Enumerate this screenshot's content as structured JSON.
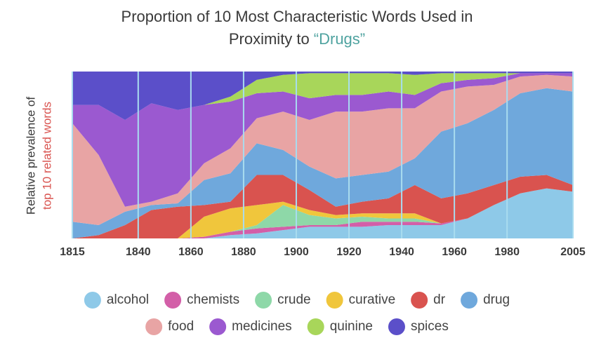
{
  "chart_data": {
    "type": "stacked_area",
    "title_line1": "Proportion of 10 Most Characteristic Words Used in",
    "title_line2": "Proximity to",
    "title_highlight": "“Drugs”",
    "ylabel_line1": "Relative prevalence of",
    "ylabel_line2": "top 10 related words",
    "x": [
      1815,
      1825,
      1835,
      1845,
      1855,
      1865,
      1875,
      1885,
      1895,
      1905,
      1915,
      1925,
      1935,
      1945,
      1955,
      1965,
      1975,
      1985,
      1995,
      2005
    ],
    "xlim": [
      1815,
      2005
    ],
    "xticks": [
      1815,
      1840,
      1860,
      1880,
      1900,
      1920,
      1940,
      1960,
      1980,
      2005
    ],
    "ylim": [
      0,
      100
    ],
    "grid": true,
    "series": [
      {
        "name": "alcohol",
        "color": "#8ec9e8",
        "values": [
          0,
          0,
          0,
          0,
          0,
          0,
          2,
          3,
          5,
          7,
          7,
          7,
          8,
          8,
          8,
          12,
          20,
          27,
          30,
          28
        ]
      },
      {
        "name": "chemists",
        "color": "#d35fa8",
        "values": [
          0,
          0,
          0,
          0,
          0,
          1,
          2,
          3,
          2,
          1,
          1,
          3,
          2,
          2,
          1,
          0,
          0,
          0,
          0,
          0
        ]
      },
      {
        "name": "crude",
        "color": "#8ed8a8",
        "values": [
          0,
          0,
          0,
          0,
          0,
          0,
          0,
          2,
          13,
          6,
          4,
          3,
          2,
          2,
          0,
          0,
          0,
          0,
          0,
          0
        ]
      },
      {
        "name": "curative",
        "color": "#f0c63c",
        "values": [
          0,
          0,
          0,
          0,
          0,
          12,
          14,
          12,
          2,
          3,
          2,
          2,
          3,
          3,
          0,
          0,
          0,
          0,
          0,
          0
        ]
      },
      {
        "name": "dr",
        "color": "#d9534f",
        "values": [
          0,
          2,
          8,
          17,
          19,
          7,
          4,
          18,
          16,
          12,
          5,
          7,
          9,
          17,
          15,
          15,
          12,
          10,
          8,
          4
        ]
      },
      {
        "name": "drug",
        "color": "#6fa8dc",
        "values": [
          10,
          6,
          8,
          3,
          2,
          15,
          17,
          19,
          15,
          14,
          17,
          16,
          16,
          16,
          40,
          42,
          45,
          50,
          52,
          56
        ]
      },
      {
        "name": "food",
        "color": "#e8a4a4",
        "values": [
          59,
          42,
          3,
          2,
          6,
          10,
          15,
          15,
          23,
          28,
          40,
          38,
          38,
          30,
          24,
          22,
          15,
          10,
          8,
          9
        ]
      },
      {
        "name": "medicines",
        "color": "#9b59d0",
        "values": [
          11,
          30,
          52,
          59,
          50,
          35,
          28,
          15,
          12,
          13,
          10,
          10,
          10,
          8,
          5,
          4,
          4,
          2,
          1,
          2
        ]
      },
      {
        "name": "quinine",
        "color": "#a8d65a",
        "values": [
          0,
          0,
          0,
          0,
          0,
          0,
          3,
          8,
          10,
          15,
          13,
          13,
          11,
          12,
          6,
          4,
          3,
          0,
          0,
          0
        ]
      },
      {
        "name": "spices",
        "color": "#5b4fc9",
        "values": [
          20,
          20,
          29,
          19,
          23,
          20,
          15,
          5,
          2,
          1,
          1,
          1,
          1,
          2,
          1,
          1,
          1,
          1,
          1,
          1
        ]
      }
    ]
  }
}
